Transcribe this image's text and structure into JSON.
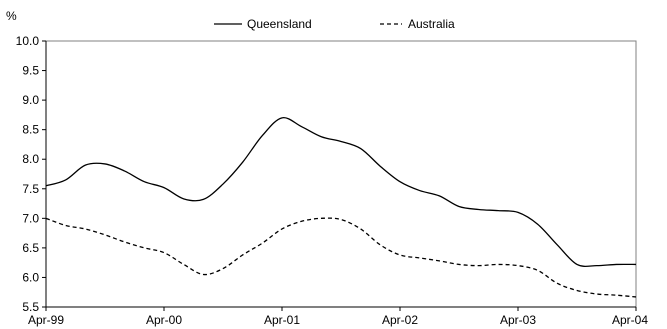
{
  "chart_data": {
    "type": "line",
    "y_unit_label": "%",
    "ylim": [
      5.5,
      10.0
    ],
    "y_ticks": [
      5.5,
      6.0,
      6.5,
      7.0,
      7.5,
      8.0,
      8.5,
      9.0,
      9.5,
      10.0
    ],
    "y_tick_labels": [
      "5.5",
      "6.0",
      "6.5",
      "7.0",
      "7.5",
      "8.0",
      "8.5",
      "9.0",
      "9.5",
      "10.0"
    ],
    "x_range": [
      "1999-04",
      "2004-04"
    ],
    "x_ticks": [
      "1999-04",
      "2000-04",
      "2001-04",
      "2002-04",
      "2003-04",
      "2004-04"
    ],
    "x_tick_labels": [
      "Apr-99",
      "Apr-00",
      "Apr-01",
      "Apr-02",
      "Apr-03",
      "Apr-04"
    ],
    "grid": false,
    "legend_position": "top-center",
    "x": [
      "1999-04",
      "1999-06",
      "1999-08",
      "1999-10",
      "1999-12",
      "2000-02",
      "2000-04",
      "2000-06",
      "2000-08",
      "2000-10",
      "2000-12",
      "2001-02",
      "2001-04",
      "2001-06",
      "2001-08",
      "2001-10",
      "2001-12",
      "2002-02",
      "2002-04",
      "2002-06",
      "2002-08",
      "2002-10",
      "2002-12",
      "2003-02",
      "2003-04",
      "2003-06",
      "2003-08",
      "2003-10",
      "2003-12",
      "2004-02",
      "2004-04"
    ],
    "series": [
      {
        "name": "Queensland",
        "style": "solid",
        "color": "#000000",
        "values": [
          7.55,
          7.65,
          7.9,
          7.92,
          7.8,
          7.62,
          7.52,
          7.33,
          7.32,
          7.58,
          7.95,
          8.4,
          8.7,
          8.55,
          8.38,
          8.3,
          8.18,
          7.88,
          7.62,
          7.47,
          7.38,
          7.2,
          7.15,
          7.13,
          7.1,
          6.9,
          6.55,
          6.22,
          6.2,
          6.22,
          6.22
        ]
      },
      {
        "name": "Australia",
        "style": "dashed",
        "color": "#000000",
        "values": [
          7.0,
          6.88,
          6.82,
          6.72,
          6.6,
          6.5,
          6.42,
          6.22,
          6.05,
          6.15,
          6.38,
          6.58,
          6.82,
          6.95,
          7.0,
          6.98,
          6.82,
          6.55,
          6.38,
          6.33,
          6.28,
          6.22,
          6.2,
          6.22,
          6.2,
          6.12,
          5.9,
          5.78,
          5.72,
          5.7,
          5.67
        ]
      }
    ]
  }
}
